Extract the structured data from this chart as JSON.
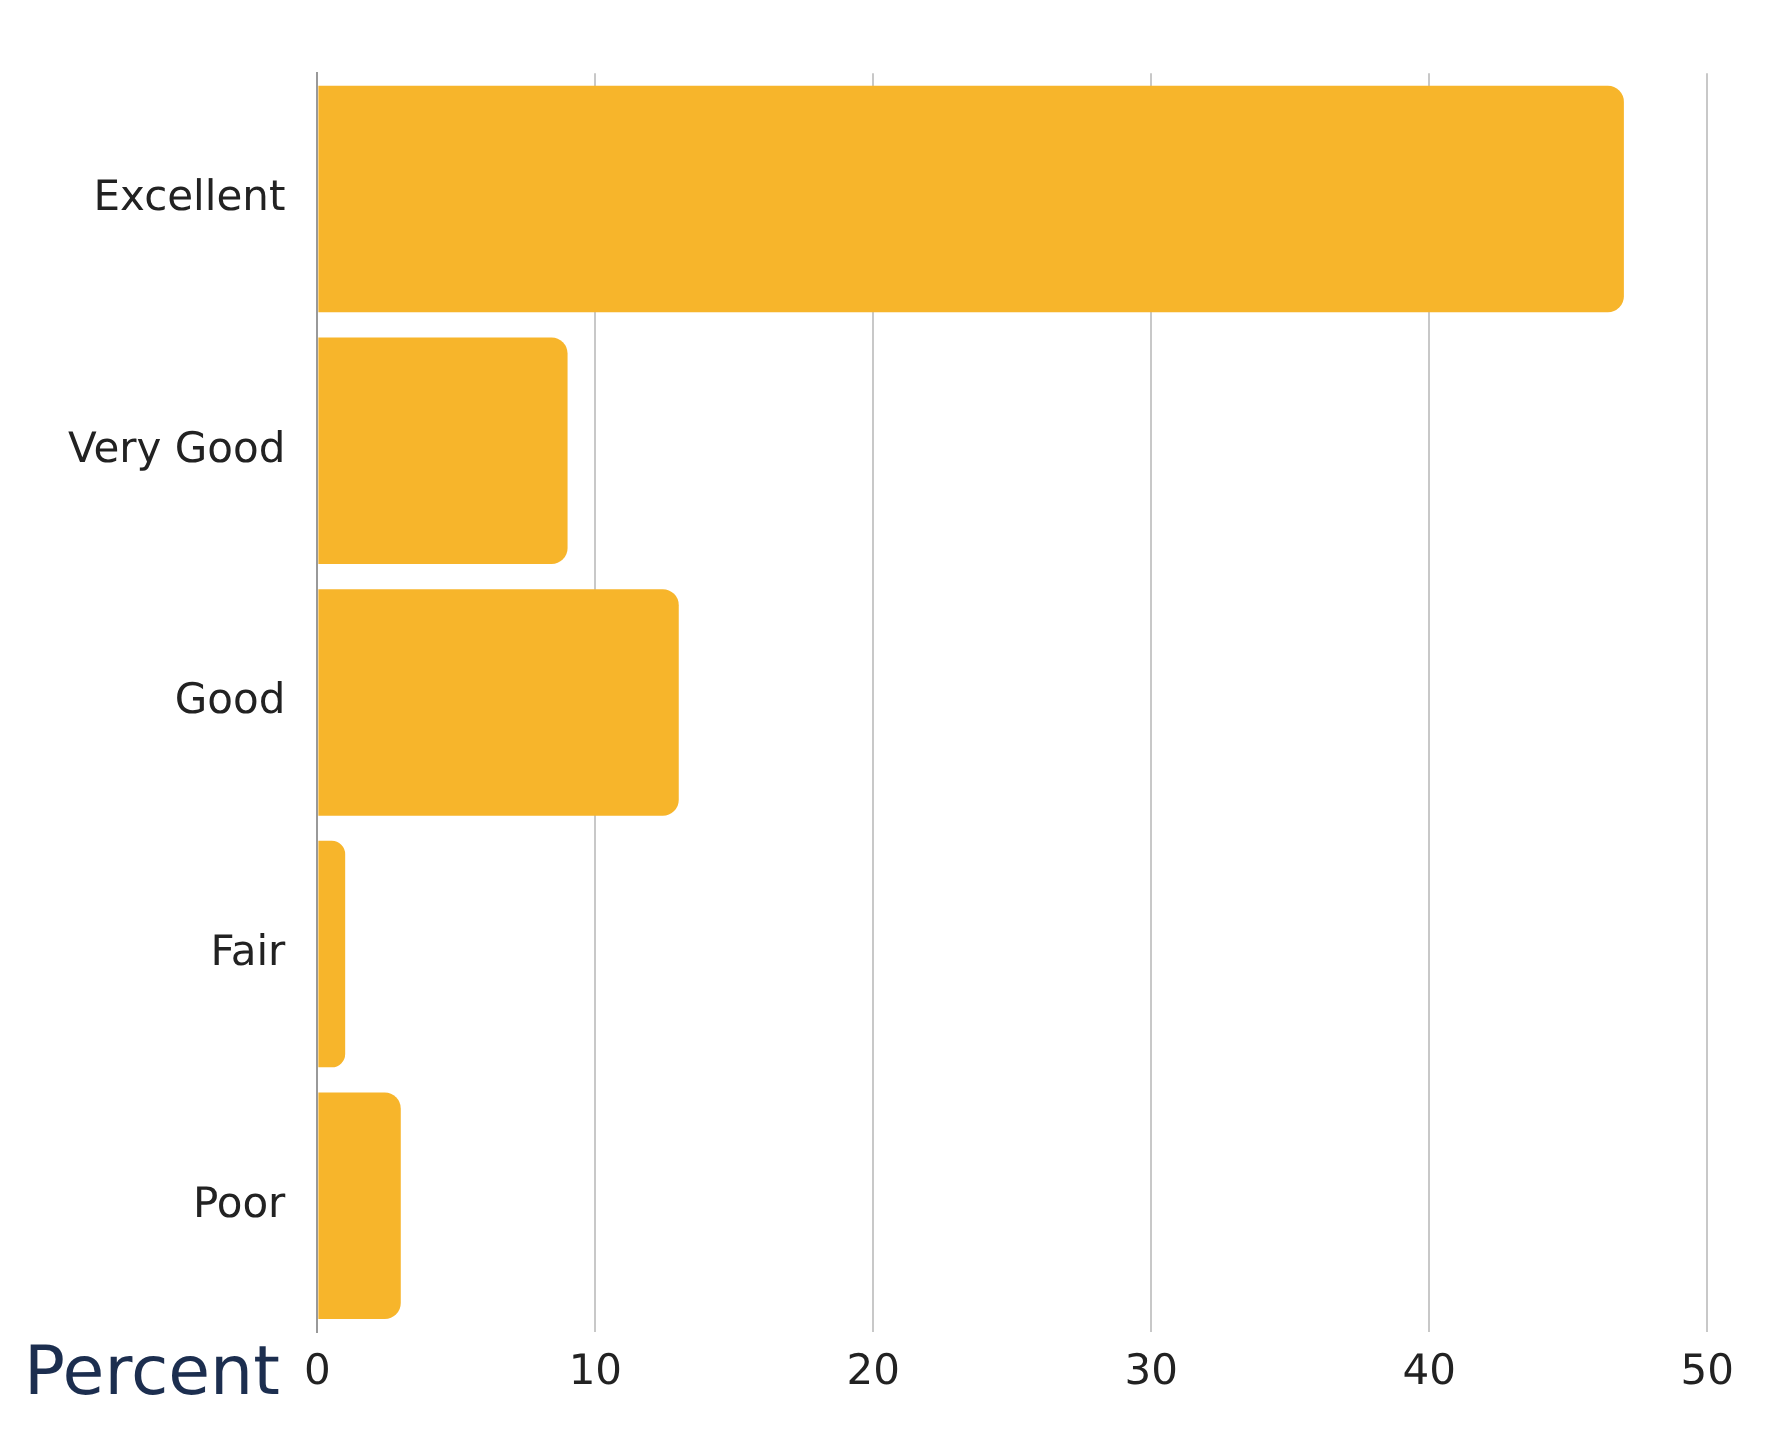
{
  "chart_data": {
    "type": "bar",
    "orientation": "horizontal",
    "xlabel": "Percent",
    "categories": [
      "Excellent",
      "Very Good",
      "Good",
      "Fair",
      "Poor"
    ],
    "values": [
      47,
      9,
      13,
      1,
      3
    ],
    "color": "#f7b52b",
    "xlim": [
      0,
      50
    ],
    "xticks": [
      0,
      10,
      20,
      30,
      40,
      50
    ],
    "grid": "x",
    "legend": false
  }
}
